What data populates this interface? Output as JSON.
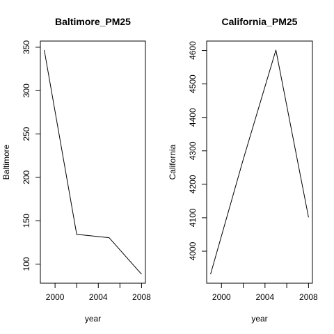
{
  "chart_data": [
    {
      "type": "line",
      "title": "Baltimore_PM25",
      "xlabel": "year",
      "ylabel": "Baltimore",
      "x": [
        1999,
        2002,
        2005,
        2008
      ],
      "series": [
        {
          "values": [
            346.8,
            134.3,
            130.4,
            88.3
          ]
        }
      ],
      "xticks": [
        2000,
        2004,
        2008
      ],
      "xtick_labels": [
        "2000",
        "2004",
        "2008"
      ],
      "yticks": [
        100,
        150,
        200,
        250,
        300,
        350
      ],
      "ytick_labels": [
        "100",
        "150",
        "200",
        "250",
        "300",
        "350"
      ],
      "xlim": [
        1999,
        2008
      ],
      "ylim": [
        88.3,
        346.8
      ],
      "grid": false,
      "color": "#000000"
    },
    {
      "type": "line",
      "title": "California_PM25",
      "xlabel": "year",
      "ylabel": "California",
      "x": [
        1999,
        2002,
        2005,
        2008
      ],
      "series": [
        {
          "values": [
            3931.1,
            4273.7,
            4601.4,
            4101.3
          ]
        }
      ],
      "xticks": [
        2000,
        2004,
        2008
      ],
      "xtick_labels": [
        "2000",
        "2004",
        "2008"
      ],
      "yticks": [
        4000,
        4100,
        4200,
        4300,
        4400,
        4500,
        4600
      ],
      "ytick_labels": [
        "4000",
        "4100",
        "4200",
        "4300",
        "4400",
        "4500",
        "4600"
      ],
      "xlim": [
        1999,
        2008
      ],
      "ylim": [
        3931.1,
        4601.4
      ],
      "grid": false,
      "color": "#000000"
    }
  ]
}
